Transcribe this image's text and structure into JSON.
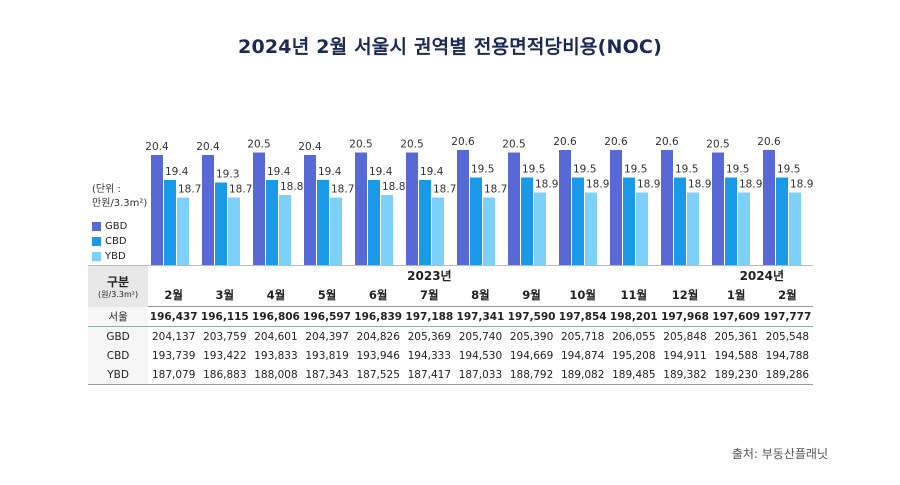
{
  "title": "2024년 2월 서울시 권역별 전용면적당비용(NOC)",
  "unit_label": "(단위 :",
  "unit_value": "만원/3.3m²)",
  "source": "출처: 부동산플래닛",
  "colors": {
    "GBD": "#5868d4",
    "CBD": "#1a9ae6",
    "YBD": "#7dd0f7",
    "header_bg": "#e8e8e8"
  },
  "chart_data": {
    "type": "bar",
    "title": "2024년 2월 서울시 권역별 전용면적당비용(NOC)",
    "ylabel": "만원/3.3m²",
    "ylim": [
      16,
      21.5
    ],
    "categories": [
      "2월",
      "3월",
      "4월",
      "5월",
      "6월",
      "7월",
      "8월",
      "9월",
      "10월",
      "11월",
      "12월",
      "1월",
      "2월"
    ],
    "series": [
      {
        "name": "GBD",
        "values": [
          20.4,
          20.4,
          20.5,
          20.4,
          20.5,
          20.5,
          20.6,
          20.5,
          20.6,
          20.6,
          20.6,
          20.5,
          20.6
        ]
      },
      {
        "name": "CBD",
        "values": [
          19.4,
          19.3,
          19.4,
          19.4,
          19.4,
          19.4,
          19.5,
          19.5,
          19.5,
          19.5,
          19.5,
          19.5,
          19.5
        ]
      },
      {
        "name": "YBD",
        "values": [
          18.7,
          18.7,
          18.8,
          18.7,
          18.8,
          18.7,
          18.7,
          18.9,
          18.9,
          18.9,
          18.9,
          18.9,
          18.9
        ]
      }
    ]
  },
  "table": {
    "header_label": "구분",
    "header_unit": "(원/3.3m²)",
    "year_2023": "2023년",
    "year_2024": "2024년",
    "months": [
      "2월",
      "3월",
      "4월",
      "5월",
      "6월",
      "7월",
      "8월",
      "9월",
      "10월",
      "11월",
      "12월",
      "1월",
      "2월"
    ],
    "rows": [
      {
        "label": "서울",
        "values": [
          "196,437",
          "196,115",
          "196,806",
          "196,597",
          "196,839",
          "197,188",
          "197,341",
          "197,590",
          "197,854",
          "198,201",
          "197,968",
          "197,609",
          "197,777"
        ]
      },
      {
        "label": "GBD",
        "values": [
          "204,137",
          "203,759",
          "204,601",
          "204,397",
          "204,826",
          "205,369",
          "205,740",
          "205,390",
          "205,718",
          "206,055",
          "205,848",
          "205,361",
          "205,548"
        ]
      },
      {
        "label": "CBD",
        "values": [
          "193,739",
          "193,422",
          "193,833",
          "193,819",
          "193,946",
          "194,333",
          "194,530",
          "194,669",
          "194,874",
          "195,208",
          "194,911",
          "194,588",
          "194,788"
        ]
      },
      {
        "label": "YBD",
        "values": [
          "187,079",
          "186,883",
          "188,008",
          "187,343",
          "187,525",
          "187,417",
          "187,033",
          "188,792",
          "189,082",
          "189,485",
          "189,382",
          "189,230",
          "189,286"
        ]
      }
    ]
  }
}
